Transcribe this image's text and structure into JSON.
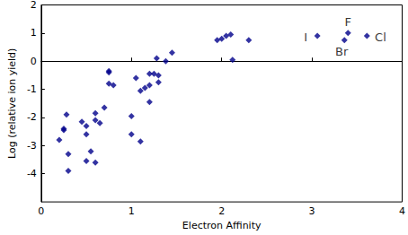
{
  "chart_data": {
    "type": "scatter",
    "x_label": "Electron Affinity",
    "y_label": "Log (relative ion yield)",
    "color": "#00008b",
    "marker": "diamond",
    "grid": false,
    "xlim": [
      0,
      4
    ],
    "xticks": [
      0,
      1,
      2,
      3,
      4
    ],
    "ylim": [
      -5,
      2
    ],
    "yticks": [
      -4,
      -3,
      -2,
      -1,
      0,
      1,
      2
    ],
    "x": [
      0.2,
      0.25,
      0.25,
      0.28,
      0.3,
      0.3,
      0.45,
      0.5,
      0.5,
      0.5,
      0.55,
      0.6,
      0.6,
      0.6,
      0.65,
      0.7,
      0.75,
      0.75,
      0.75,
      0.8,
      1.0,
      1.0,
      1.05,
      1.1,
      1.1,
      1.15,
      1.2,
      1.2,
      1.2,
      1.25,
      1.28,
      1.3,
      1.3,
      1.38,
      1.45,
      1.95,
      2.0,
      2.05,
      2.1,
      2.12,
      2.3,
      3.06,
      3.36,
      3.4,
      3.61
    ],
    "values": [
      -2.8,
      -2.45,
      -2.4,
      -1.9,
      -3.3,
      -3.9,
      -2.15,
      -2.3,
      -2.6,
      -3.55,
      -3.2,
      -1.85,
      -2.1,
      -3.6,
      -2.2,
      -1.65,
      -0.35,
      -0.4,
      -0.8,
      -0.85,
      -1.95,
      -2.6,
      -0.6,
      -1.05,
      -2.85,
      -0.95,
      -0.45,
      -0.85,
      -1.45,
      -0.45,
      0.1,
      -0.5,
      -0.75,
      0.0,
      0.3,
      0.75,
      0.8,
      0.9,
      0.95,
      0.05,
      0.75,
      0.9,
      0.75,
      1.0,
      0.9
    ],
    "annotations": [
      {
        "text": "I",
        "x": 2.93,
        "y": 0.85
      },
      {
        "text": "F",
        "x": 3.4,
        "y": 1.4
      },
      {
        "text": "Br",
        "x": 3.33,
        "y": 0.35
      },
      {
        "text": "Cl",
        "x": 3.76,
        "y": 0.85
      }
    ]
  }
}
